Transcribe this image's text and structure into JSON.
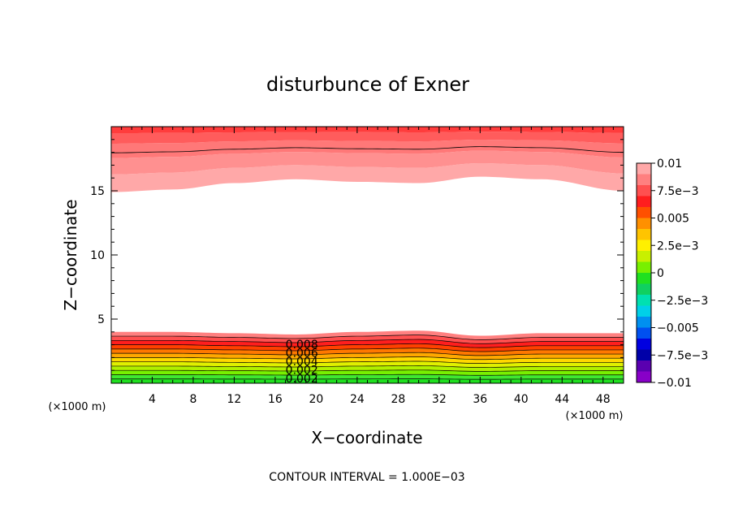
{
  "chart_data": {
    "type": "contour",
    "title": "disturbunce of Exner",
    "xlabel": "X−coordinate",
    "ylabel": "Z−coordinate",
    "x_unit": "(×1000 m)",
    "z_unit": "(×1000 m)",
    "xlim": [
      0,
      50
    ],
    "ylim": [
      0,
      20
    ],
    "x_ticks": [
      4,
      8,
      12,
      16,
      20,
      24,
      28,
      32,
      36,
      40,
      44,
      48
    ],
    "y_ticks": [
      5,
      10,
      15
    ],
    "colorbar": {
      "min": -0.01,
      "max": 0.01,
      "labels": [
        "0.01",
        "7.5e−3",
        "0.005",
        "2.5e−3",
        "0",
        "−2.5e−3",
        "−0.005",
        "−7.5e−3",
        "−0.01"
      ],
      "colors": [
        "#ffa8a8",
        "#ff8080",
        "#ff5050",
        "#ff1e1e",
        "#ff5000",
        "#ff9000",
        "#ffc400",
        "#fff000",
        "#c8f000",
        "#78f000",
        "#20e020",
        "#10d060",
        "#00e0b0",
        "#00d0e8",
        "#0090f0",
        "#0050f0",
        "#0000e0",
        "#0000a8",
        "#5a00b0",
        "#8800c8"
      ]
    },
    "contour_labels": [
      "0.008",
      "0.006",
      "0.004",
      "0.002",
      "0.002"
    ],
    "contour_interval": "CONTOUR INTERVAL = 1.000E−03",
    "upper_band": {
      "profile_x": [
        0,
        6,
        12,
        18,
        24,
        30,
        36,
        42,
        50
      ],
      "lower_edge_z": [
        14.9,
        15.1,
        15.6,
        15.9,
        15.7,
        15.6,
        16.1,
        15.9,
        15.0
      ]
    },
    "lower_band": {
      "profile_x": [
        0,
        6,
        12,
        18,
        24,
        30,
        36,
        42,
        50
      ],
      "top_edge_z": [
        4.0,
        4.0,
        3.9,
        3.8,
        4.0,
        4.1,
        3.7,
        3.9,
        3.9
      ]
    }
  }
}
